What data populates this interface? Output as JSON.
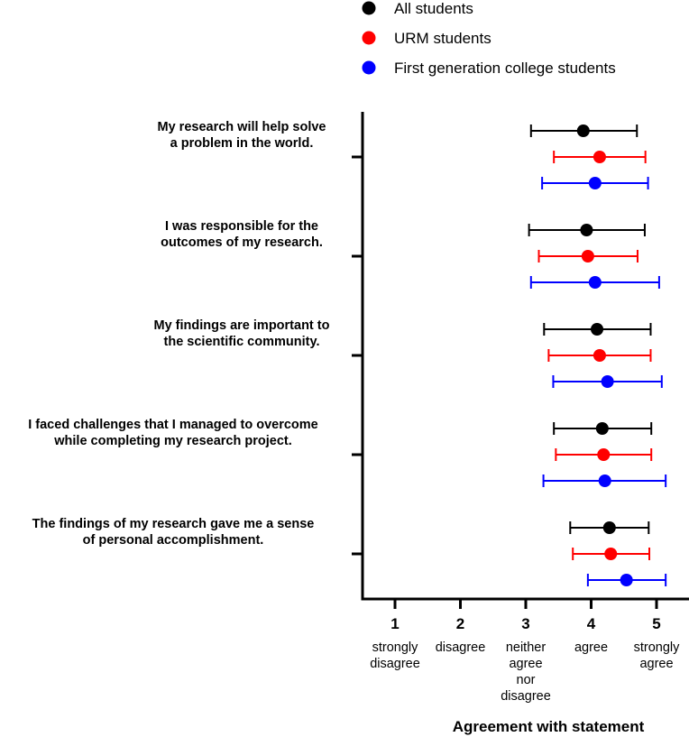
{
  "chart_data": {
    "type": "dot-errorbar",
    "legend": [
      {
        "name": "All students",
        "color": "#000000"
      },
      {
        "name": "URM students",
        "color": "#ff0000"
      },
      {
        "name": "First generation college students",
        "color": "#0000ff"
      }
    ],
    "xlabel": "Agreement with statement",
    "xlim": [
      0.5,
      5.5
    ],
    "xticks": [
      {
        "value": 1,
        "label": "1",
        "desc": [
          "strongly",
          "disagree"
        ]
      },
      {
        "value": 2,
        "label": "2",
        "desc": [
          "disagree"
        ]
      },
      {
        "value": 3,
        "label": "3",
        "desc": [
          "neither",
          "agree",
          "nor",
          "disagree"
        ]
      },
      {
        "value": 4,
        "label": "4",
        "desc": [
          "agree"
        ]
      },
      {
        "value": 5,
        "label": "5",
        "desc": [
          "strongly",
          "agree"
        ]
      }
    ],
    "statements": [
      {
        "label": [
          "My research will help solve",
          "a problem in the world."
        ],
        "series": [
          {
            "name": "All students",
            "mean": 3.88,
            "low": 3.08,
            "high": 4.7
          },
          {
            "name": "URM students",
            "mean": 4.13,
            "low": 3.43,
            "high": 4.83
          },
          {
            "name": "First generation college students",
            "mean": 4.06,
            "low": 3.25,
            "high": 4.87
          }
        ]
      },
      {
        "label": [
          "I was responsible for the",
          "outcomes of my research."
        ],
        "series": [
          {
            "name": "All students",
            "mean": 3.93,
            "low": 3.05,
            "high": 4.82
          },
          {
            "name": "URM students",
            "mean": 3.95,
            "low": 3.2,
            "high": 4.71
          },
          {
            "name": "First generation college students",
            "mean": 4.06,
            "low": 3.08,
            "high": 5.04
          }
        ]
      },
      {
        "label": [
          "My findings are important to",
          "the scientific community."
        ],
        "series": [
          {
            "name": "All students",
            "mean": 4.09,
            "low": 3.28,
            "high": 4.91
          },
          {
            "name": "URM students",
            "mean": 4.13,
            "low": 3.35,
            "high": 4.91
          },
          {
            "name": "First generation college students",
            "mean": 4.25,
            "low": 3.42,
            "high": 5.08
          }
        ]
      },
      {
        "label": [
          "I faced challenges that I managed to overcome",
          "while completing my research project."
        ],
        "series": [
          {
            "name": "All students",
            "mean": 4.17,
            "low": 3.43,
            "high": 4.92
          },
          {
            "name": "URM students",
            "mean": 4.19,
            "low": 3.46,
            "high": 4.92
          },
          {
            "name": "First generation college students",
            "mean": 4.21,
            "low": 3.27,
            "high": 5.14
          }
        ]
      },
      {
        "label": [
          "The findings of my research gave me a sense",
          "of personal accomplishment."
        ],
        "series": [
          {
            "name": "All students",
            "mean": 4.28,
            "low": 3.68,
            "high": 4.88
          },
          {
            "name": "URM students",
            "mean": 4.3,
            "low": 3.72,
            "high": 4.89
          },
          {
            "name": "First generation college students",
            "mean": 4.54,
            "low": 3.95,
            "high": 5.14
          }
        ]
      }
    ]
  }
}
